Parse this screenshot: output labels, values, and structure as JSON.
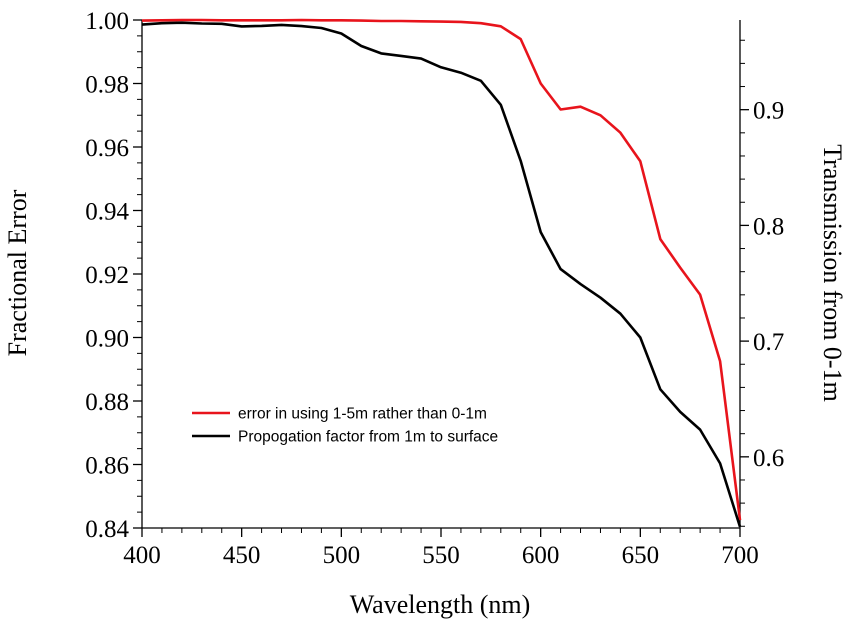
{
  "chart_data": {
    "type": "line",
    "title": "",
    "xlabel": "Wavelength (nm)",
    "ylabel": "Fractional Error",
    "y2label": "Transmission from 0-1m",
    "xlim": [
      400,
      700
    ],
    "ylim": [
      0.84,
      1.0
    ],
    "y2lim": [
      0.5385,
      0.9775
    ],
    "grid": false,
    "legend_position": "lower-left",
    "x_ticks": [
      400,
      450,
      500,
      550,
      600,
      650,
      700
    ],
    "x_tick_labels": [
      "400",
      "450",
      "500",
      "550",
      "600",
      "650",
      "700"
    ],
    "y_ticks": [
      0.84,
      0.86,
      0.88,
      0.9,
      0.92,
      0.94,
      0.96,
      0.98,
      1.0
    ],
    "y_tick_labels": [
      "0.84",
      "0.86",
      "0.88",
      "0.90",
      "0.92",
      "0.94",
      "0.96",
      "0.98",
      "1.00"
    ],
    "y2_ticks": [
      0.6,
      0.7,
      0.8,
      0.9
    ],
    "y2_tick_labels": [
      "0.6",
      "0.7",
      "0.8",
      "0.9"
    ],
    "series": [
      {
        "name": "error in using 1-5m rather than 0-1m",
        "color": "#e8141c",
        "axis": "left",
        "x": [
          400,
          410,
          420,
          430,
          440,
          450,
          460,
          470,
          480,
          490,
          500,
          510,
          520,
          530,
          540,
          550,
          560,
          570,
          580,
          590,
          600,
          610,
          620,
          630,
          640,
          650,
          660,
          670,
          680,
          690,
          700
        ],
        "y": [
          0.9998,
          0.9999,
          1.0,
          1.0,
          0.9999,
          0.9999,
          0.9999,
          0.9999,
          1.0,
          0.9999,
          0.9999,
          0.9998,
          0.9997,
          0.9997,
          0.9996,
          0.9995,
          0.9994,
          0.999,
          0.998,
          0.994,
          0.98,
          0.9718,
          0.9727,
          0.97,
          0.9645,
          0.9555,
          0.931,
          0.922,
          0.9135,
          0.8925,
          0.8425
        ]
      },
      {
        "name": "Propogation factor from 1m to surface",
        "color": "#000000",
        "axis": "right",
        "x": [
          400,
          410,
          420,
          430,
          440,
          450,
          460,
          470,
          480,
          490,
          500,
          510,
          520,
          530,
          540,
          550,
          560,
          570,
          580,
          590,
          600,
          610,
          620,
          630,
          640,
          650,
          660,
          670,
          680,
          690,
          700
        ],
        "y": [
          0.9735,
          0.9747,
          0.9752,
          0.9745,
          0.9742,
          0.972,
          0.9724,
          0.9733,
          0.9722,
          0.9706,
          0.9658,
          0.955,
          0.9486,
          0.9465,
          0.9441,
          0.9366,
          0.932,
          0.925,
          0.9042,
          0.8557,
          0.7942,
          0.7622,
          0.7493,
          0.7375,
          0.7237,
          0.7031,
          0.6584,
          0.6388,
          0.6235,
          0.5943,
          0.5395
        ]
      }
    ]
  }
}
